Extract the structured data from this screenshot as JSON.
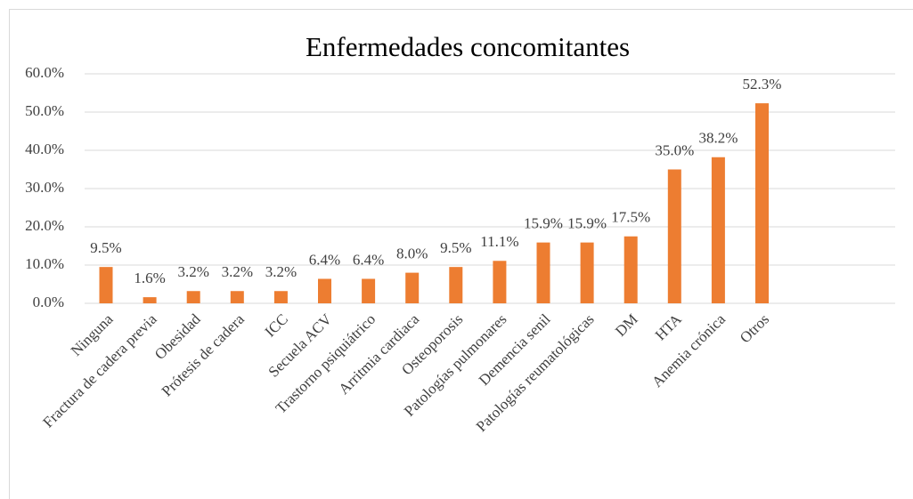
{
  "chart_data": {
    "type": "bar",
    "title": "Enfermedades concomitantes",
    "categories": [
      "Ninguna",
      "Fractura de cadera previa",
      "Obesidad",
      "Prótesis de cadera",
      "ICC",
      "Secuela ACV",
      "Trastorno psiquiátrico",
      "Arritmia cardiaca",
      "Osteoporosis",
      "Patologías pulmonares",
      "Demencia senil",
      "Patologías reumatológicas",
      "DM",
      "HTA",
      "Anemia crónica",
      "Otros"
    ],
    "values": [
      9.5,
      1.6,
      3.2,
      3.2,
      3.2,
      6.4,
      6.4,
      8.0,
      9.5,
      11.1,
      15.9,
      15.9,
      17.5,
      35.0,
      38.2,
      52.3
    ],
    "value_labels": [
      "9.5%",
      "1.6%",
      "3.2%",
      "3.2%",
      "3.2%",
      "6.4%",
      "6.4%",
      "8.0%",
      "9.5%",
      "11.1%",
      "15.9%",
      "15.9%",
      "17.5%",
      "35.0%",
      "38.2%",
      "52.3%"
    ],
    "color": "#ed7d31",
    "ylim": [
      0,
      60
    ],
    "yticks": [
      {
        "value": 0,
        "label": "0.0%"
      },
      {
        "value": 10,
        "label": "10.0%"
      },
      {
        "value": 20,
        "label": "20.0%"
      },
      {
        "value": 30,
        "label": "30.0%"
      },
      {
        "value": 40,
        "label": "40.0%"
      },
      {
        "value": 50,
        "label": "50.0%"
      },
      {
        "value": 60,
        "label": "60.0%"
      }
    ],
    "grid": true
  }
}
